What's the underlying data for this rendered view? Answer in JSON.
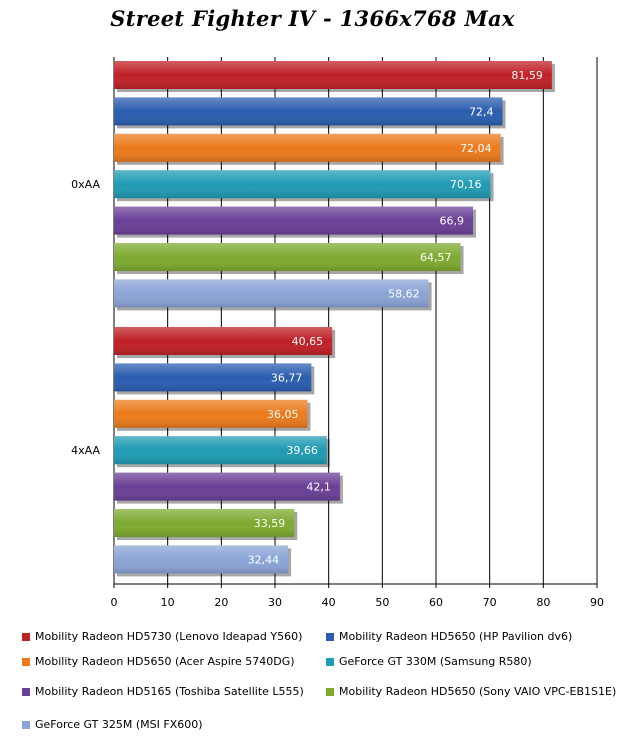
{
  "chart_data": {
    "type": "bar",
    "orientation": "horizontal",
    "title": "Street Fighter IV - 1366x768 Max",
    "categories": [
      "0xAA",
      "4xAA"
    ],
    "xlim": [
      0,
      90
    ],
    "xticks": [
      0,
      10,
      20,
      30,
      40,
      50,
      60,
      70,
      80,
      90
    ],
    "grid": true,
    "legend_position": "bottom",
    "series": [
      {
        "name": "Mobility Radeon HD5730 (Lenovo Ideapad Y560)",
        "color": "#bf2026",
        "values": [
          81.59,
          40.65
        ],
        "labels": [
          "81,59",
          "40,65"
        ]
      },
      {
        "name": "Mobility Radeon HD5650 (HP Pavilion dv6)",
        "color": "#2a5db0",
        "values": [
          72.4,
          36.77
        ],
        "labels": [
          "72,4",
          "36,77"
        ]
      },
      {
        "name": "Mobility Radeon HD5650 (Acer Aspire 5740DG)",
        "color": "#ec7a1c",
        "values": [
          72.04,
          36.05
        ],
        "labels": [
          "72,04",
          "36,05"
        ]
      },
      {
        "name": "GeForce GT 330M (Samsung R580)",
        "color": "#1f9bb3",
        "values": [
          70.16,
          39.66
        ],
        "labels": [
          "70,16",
          "39,66"
        ]
      },
      {
        "name": "Mobility Radeon HD5165 (Toshiba Satellite L555)",
        "color": "#6a3f96",
        "values": [
          66.9,
          42.1
        ],
        "labels": [
          "66,9",
          "42,1"
        ]
      },
      {
        "name": "Mobility Radeon HD5650 (Sony VAIO VPC-EB1S1E)",
        "color": "#7eaa30",
        "values": [
          64.57,
          33.59
        ],
        "labels": [
          "64,57",
          "33,59"
        ]
      },
      {
        "name": "GeForce GT 325M (MSI FX600)",
        "color": "#8aa4d6",
        "values": [
          58.62,
          32.44
        ],
        "labels": [
          "58,62",
          "32,44"
        ]
      }
    ]
  }
}
